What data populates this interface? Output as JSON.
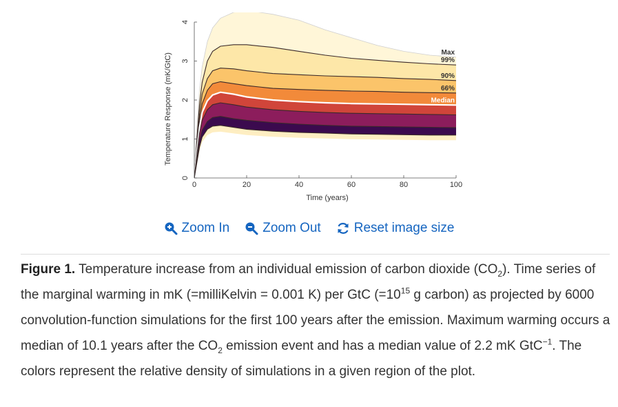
{
  "chart_data": {
    "type": "area",
    "title": "",
    "xlabel": "Time (years)",
    "ylabel": "Temperature Response (mK/GtC)",
    "xlim": [
      0,
      100
    ],
    "ylim": [
      0,
      4
    ],
    "x_ticks": [
      "0",
      "20",
      "40",
      "60",
      "80",
      "100"
    ],
    "y_ticks": [
      "0",
      "1",
      "2",
      "3",
      "4"
    ],
    "grid": false,
    "x": [
      0,
      1,
      2,
      3,
      5,
      7,
      10,
      15,
      20,
      30,
      40,
      50,
      60,
      70,
      80,
      90,
      100
    ],
    "series": [
      {
        "name": "Max",
        "values": [
          0,
          1.3,
          2.25,
          2.85,
          3.5,
          3.85,
          4.1,
          4.25,
          4.3,
          4.2,
          4.05,
          3.8,
          3.6,
          3.4,
          3.25,
          3.15,
          3.1
        ]
      },
      {
        "name": "99%",
        "values": [
          0,
          1.0,
          1.9,
          2.45,
          3.0,
          3.25,
          3.38,
          3.42,
          3.42,
          3.35,
          3.25,
          3.15,
          3.07,
          3.02,
          2.97,
          2.93,
          2.9
        ]
      },
      {
        "name": "90%",
        "values": [
          0,
          0.9,
          1.65,
          2.15,
          2.55,
          2.75,
          2.82,
          2.8,
          2.75,
          2.68,
          2.65,
          2.62,
          2.6,
          2.58,
          2.55,
          2.53,
          2.5
        ]
      },
      {
        "name": "66%",
        "values": [
          0,
          0.8,
          1.45,
          1.9,
          2.25,
          2.42,
          2.47,
          2.42,
          2.37,
          2.3,
          2.27,
          2.25,
          2.23,
          2.22,
          2.2,
          2.19,
          2.18
        ]
      },
      {
        "name": "Median",
        "values": [
          0,
          0.7,
          1.3,
          1.68,
          1.98,
          2.13,
          2.2,
          2.15,
          2.08,
          2.0,
          1.96,
          1.93,
          1.91,
          1.9,
          1.89,
          1.88,
          1.87
        ]
      },
      {
        "name": "",
        "values": [
          0,
          0.6,
          1.15,
          1.48,
          1.75,
          1.88,
          1.93,
          1.88,
          1.82,
          1.75,
          1.71,
          1.68,
          1.66,
          1.65,
          1.64,
          1.63,
          1.62
        ]
      },
      {
        "name": "",
        "values": [
          0,
          0.5,
          0.95,
          1.22,
          1.45,
          1.55,
          1.58,
          1.52,
          1.48,
          1.42,
          1.38,
          1.35,
          1.33,
          1.32,
          1.31,
          1.3,
          1.29
        ]
      },
      {
        "name": "",
        "values": [
          0,
          0.4,
          0.8,
          1.05,
          1.25,
          1.33,
          1.35,
          1.3,
          1.25,
          1.2,
          1.17,
          1.15,
          1.13,
          1.12,
          1.11,
          1.1,
          1.1
        ]
      }
    ],
    "band_colors": [
      "#fff6d8",
      "#fde7a8",
      "#fbc46a",
      "#f28a3a",
      "#d0453a",
      "#8c1d5c",
      "#3b0a4e"
    ],
    "median_color": "#ffffff",
    "quantile_labels": [
      "Max",
      "99%",
      "90%",
      "66%",
      "Median"
    ]
  },
  "toolbar": {
    "zoom_in": "Zoom In",
    "zoom_out": "Zoom Out",
    "reset": "Reset image size",
    "link_color": "#1565c0"
  },
  "caption": {
    "figure_label": "Figure 1.",
    "t1": " Temperature increase from an individual emission of carbon dioxide (CO",
    "sub1": "2",
    "t2": "). Time series of the marginal warming in mK (=milliKelvin = 0.001 K) per GtC (=10",
    "sup1": "15",
    "t3": " g carbon) as projected by 6000 convolution-function simulations for the first 100 years after the emission. Maximum warming occurs a median of 10.1 years after the CO",
    "sub2": "2",
    "t4": " emission event and has a median value of 2.2 mK GtC",
    "sup2": "−1",
    "t5": ". The colors represent the relative density of simulations in a given region of the plot."
  }
}
